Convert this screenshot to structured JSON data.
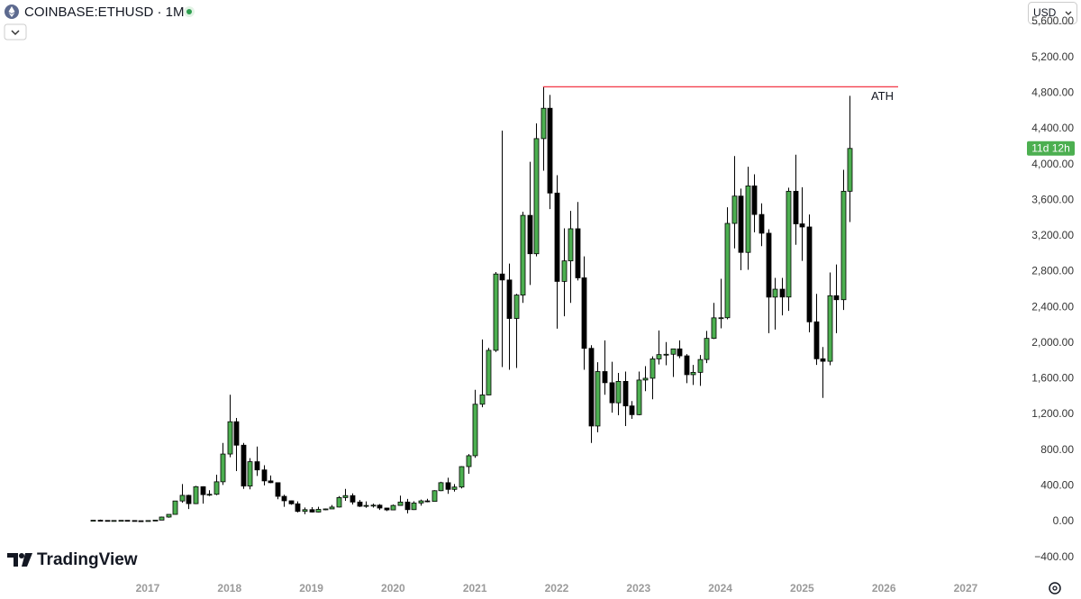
{
  "chart_data": {
    "type": "candlestick",
    "title": "COINBASE:ETHUSD · 1M",
    "currency": "USD",
    "watermark": "TradingView",
    "countdown": "11d 12h",
    "up_color": "#4caf50",
    "down_color": "#000000",
    "grid": false,
    "ath_line": {
      "label": "ATH",
      "value": 4870,
      "color": "#f23645"
    },
    "x": [
      2016.333,
      2016.417,
      2016.5,
      2016.583,
      2016.667,
      2016.75,
      2016.833,
      2016.917,
      2017,
      2017.083,
      2017.167,
      2017.25,
      2017.333,
      2017.417,
      2017.5,
      2017.583,
      2017.667,
      2017.75,
      2017.833,
      2017.917,
      2018,
      2018.083,
      2018.167,
      2018.25,
      2018.333,
      2018.417,
      2018.5,
      2018.583,
      2018.667,
      2018.75,
      2018.833,
      2018.917,
      2019,
      2019.083,
      2019.167,
      2019.25,
      2019.333,
      2019.417,
      2019.5,
      2019.583,
      2019.667,
      2019.75,
      2019.833,
      2019.917,
      2020,
      2020.083,
      2020.167,
      2020.25,
      2020.333,
      2020.417,
      2020.5,
      2020.583,
      2020.667,
      2020.75,
      2020.833,
      2020.917,
      2021,
      2021.083,
      2021.167,
      2021.25,
      2021.333,
      2021.417,
      2021.5,
      2021.583,
      2021.667,
      2021.75,
      2021.833,
      2021.917,
      2022,
      2022.083,
      2022.167,
      2022.25,
      2022.333,
      2022.417,
      2022.5,
      2022.583,
      2022.667,
      2022.75,
      2022.833,
      2022.917,
      2023,
      2023.083,
      2023.167,
      2023.25,
      2023.333,
      2023.417,
      2023.5,
      2023.583,
      2023.667,
      2023.75,
      2023.833,
      2023.917,
      2024,
      2024.083,
      2024.167,
      2024.25,
      2024.333,
      2024.417,
      2024.5,
      2024.583,
      2024.667,
      2024.75,
      2024.833,
      2024.917,
      2025,
      2025.083,
      2025.167,
      2025.25,
      2025.333,
      2025.417,
      2025.5,
      2025.583
    ],
    "open": [
      12,
      14,
      12,
      11.5,
      11.5,
      13,
      11,
      8.6,
      8,
      10.7,
      15.8,
      50,
      80,
      230,
      293,
      200,
      390,
      301,
      305,
      445,
      756,
      1118,
      855,
      397,
      670,
      578,
      455,
      435,
      282,
      232,
      198,
      113,
      133,
      106,
      136,
      141,
      162,
      268,
      290,
      218,
      171,
      180,
      183,
      151,
      130,
      180,
      218,
      133,
      207,
      231,
      225,
      345,
      435,
      360,
      386,
      615,
      737,
      1314,
      1418,
      1918,
      2773,
      2706,
      2275,
      2537,
      3430,
      3000,
      4290,
      4630,
      3680,
      2690,
      2920,
      3280,
      2730,
      1940,
      1070,
      1680,
      1555,
      1330,
      1570,
      1295,
      1197,
      1585,
      1605,
      1822,
      1870,
      1874,
      1934,
      1856,
      1645,
      1671,
      1815,
      2052,
      2282,
      2283,
      3340,
      3646,
      3015,
      3760,
      3440,
      3230,
      2514,
      2603,
      2515,
      3700,
      3335,
      3300,
      2237,
      1823,
      1795,
      2530,
      2485,
      3700
    ],
    "high": [
      14,
      21,
      15,
      12,
      14,
      14,
      11.5,
      9,
      11.5,
      16,
      55,
      80,
      230,
      420,
      300,
      400,
      395,
      350,
      525,
      880,
      1420,
      1160,
      880,
      710,
      840,
      630,
      515,
      435,
      300,
      235,
      225,
      157,
      161,
      165,
      145,
      185,
      285,
      365,
      315,
      240,
      225,
      200,
      195,
      153,
      190,
      290,
      253,
      227,
      245,
      255,
      350,
      445,
      490,
      420,
      620,
      755,
      1475,
      2040,
      1945,
      2795,
      4380,
      2890,
      2550,
      3470,
      4030,
      4460,
      4870,
      4780,
      3880,
      3285,
      3480,
      3580,
      2970,
      1975,
      1785,
      2030,
      1790,
      1665,
      1680,
      1350,
      1680,
      1740,
      1850,
      2140,
      2010,
      1930,
      2030,
      1875,
      1755,
      1865,
      2135,
      2450,
      2720,
      3520,
      4095,
      3730,
      3975,
      3890,
      3565,
      3275,
      2730,
      2730,
      3740,
      4110,
      3745,
      3440,
      2550,
      1955,
      2790,
      2880,
      3940,
      4770
    ],
    "low": [
      10,
      11,
      10,
      10,
      11,
      10.5,
      8.5,
      6.5,
      8,
      10.5,
      15.5,
      43,
      78,
      210,
      140,
      195,
      200,
      285,
      295,
      410,
      720,
      565,
      365,
      360,
      510,
      405,
      430,
      250,
      165,
      188,
      102,
      82,
      100,
      102,
      126,
      141,
      157,
      232,
      190,
      162,
      153,
      156,
      130,
      117,
      127,
      178,
      90,
      130,
      177,
      215,
      223,
      340,
      310,
      335,
      370,
      535,
      714,
      1280,
      1415,
      1900,
      1730,
      1700,
      1720,
      2450,
      2650,
      2970,
      3930,
      3500,
      2160,
      2300,
      2450,
      2700,
      1700,
      880,
      1000,
      1420,
      1220,
      1190,
      1070,
      1150,
      1190,
      1460,
      1370,
      1760,
      1750,
      1620,
      1830,
      1550,
      1530,
      1520,
      1775,
      2045,
      2165,
      2265,
      3060,
      2815,
      2820,
      3240,
      3085,
      2110,
      2150,
      2310,
      2360,
      3100,
      2920,
      2120,
      1755,
      1385,
      1750,
      2110,
      2370,
      3355
    ],
    "close": [
      14,
      12,
      11.5,
      11.5,
      13,
      11,
      8.6,
      8,
      10.7,
      15.8,
      50,
      80,
      230,
      293,
      200,
      390,
      301,
      305,
      445,
      756,
      1118,
      855,
      397,
      670,
      578,
      455,
      435,
      282,
      232,
      198,
      113,
      133,
      106,
      136,
      141,
      162,
      268,
      290,
      218,
      171,
      180,
      183,
      151,
      130,
      180,
      218,
      133,
      207,
      231,
      225,
      345,
      435,
      360,
      386,
      615,
      737,
      1314,
      1418,
      1918,
      2773,
      2706,
      2275,
      2537,
      3430,
      3000,
      4290,
      4630,
      3680,
      2690,
      2920,
      3280,
      2730,
      1940,
      1070,
      1680,
      1555,
      1330,
      1570,
      1295,
      1197,
      1585,
      1605,
      1822,
      1870,
      1874,
      1934,
      1856,
      1645,
      1671,
      1815,
      2052,
      2282,
      2283,
      3340,
      3646,
      3015,
      3760,
      3440,
      3230,
      2514,
      2603,
      2515,
      3700,
      3335,
      3300,
      2237,
      1823,
      1795,
      2530,
      2485,
      3700,
      4180
    ],
    "xlim": [
      2015.194,
      2027.639
    ],
    "xticks": [
      2017,
      2018,
      2019,
      2020,
      2021,
      2022,
      2023,
      2024,
      2025,
      2026,
      2027
    ],
    "ylim": [
      -616,
      5843
    ],
    "yticks": [
      {
        "value": -400,
        "label": "−400.00"
      },
      {
        "value": 0,
        "label": "0.00"
      },
      {
        "value": 400,
        "label": "400.00"
      },
      {
        "value": 800,
        "label": "800.00"
      },
      {
        "value": 1200,
        "label": "1,200.00"
      },
      {
        "value": 1600,
        "label": "1,600.00"
      },
      {
        "value": 2000,
        "label": "2,000.00"
      },
      {
        "value": 2400,
        "label": "2,400.00"
      },
      {
        "value": 2800,
        "label": "2,800.00"
      },
      {
        "value": 3200,
        "label": "3,200.00"
      },
      {
        "value": 3600,
        "label": "3,600.00"
      },
      {
        "value": 4000,
        "label": "4,000.00"
      },
      {
        "value": 4400,
        "label": "4,400.00"
      },
      {
        "value": 4800,
        "label": "4,800.00"
      },
      {
        "value": 5200,
        "label": "5,200.00"
      },
      {
        "value": 5600,
        "label": "5,600.00"
      }
    ]
  }
}
